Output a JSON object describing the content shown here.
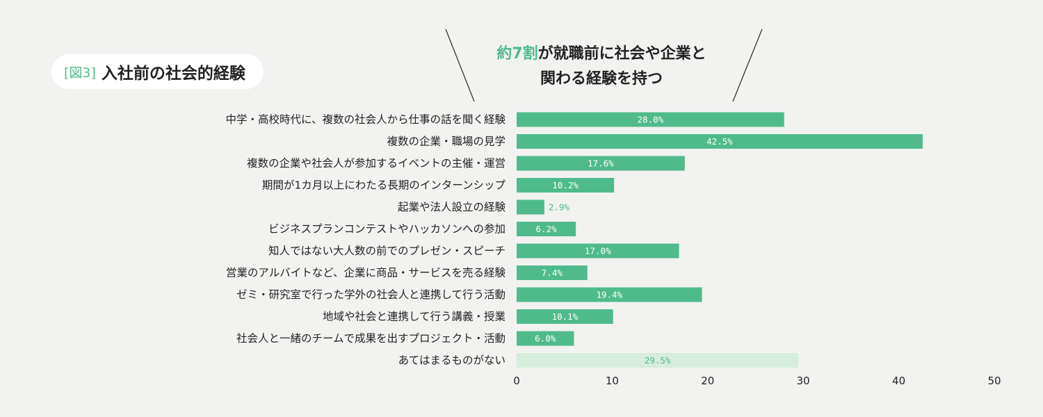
{
  "header": {
    "figure_tag": "[図3]",
    "title": "入社前の社会的経験"
  },
  "callout": {
    "highlight": "約7割",
    "line1_rest": "が就職前に社会や企業と",
    "line2": "関わる経験を持つ"
  },
  "colors": {
    "bar": "#4fbb8c",
    "bar_light": "#d6ecdc",
    "accent": "#4fbb8c",
    "background": "#f2f2f1"
  },
  "chart_data": {
    "type": "bar",
    "orientation": "horizontal",
    "categories": [
      "中学・高校時代に、複数の社会人から仕事の話を聞く経験",
      "複数の企業・職場の見学",
      "複数の企業や社会人が参加するイベントの主催・運営",
      "期間が1カ月以上にわたる長期のインターンシップ",
      "起業や法人設立の経験",
      "ビジネスプランコンテストやハッカソンへの参加",
      "知人ではない大人数の前でのプレゼン・スピーチ",
      "営業のアルバイトなど、企業に商品・サービスを売る経験",
      "ゼミ・研究室で行った学外の社会人と連携して行う活動",
      "地域や社会と連携して行う講義・授業",
      "社会人と一緒のチームで成果を出すプロジェクト・活動",
      "あてはまるものがない"
    ],
    "values": [
      28.0,
      42.5,
      17.6,
      10.2,
      2.9,
      6.2,
      17.0,
      7.4,
      19.4,
      10.1,
      6.0,
      29.5
    ],
    "value_labels": [
      "28.0%",
      "42.5%",
      "17.6%",
      "10.2%",
      "2.9%",
      "6.2%",
      "17.0%",
      "7.4%",
      "19.4%",
      "10.1%",
      "6.0%",
      "29.5%"
    ],
    "xlim": [
      0,
      50
    ],
    "xticks": [
      0,
      10,
      20,
      30,
      40,
      50
    ],
    "grid": false,
    "legend": "none",
    "last_bar_light": true
  }
}
